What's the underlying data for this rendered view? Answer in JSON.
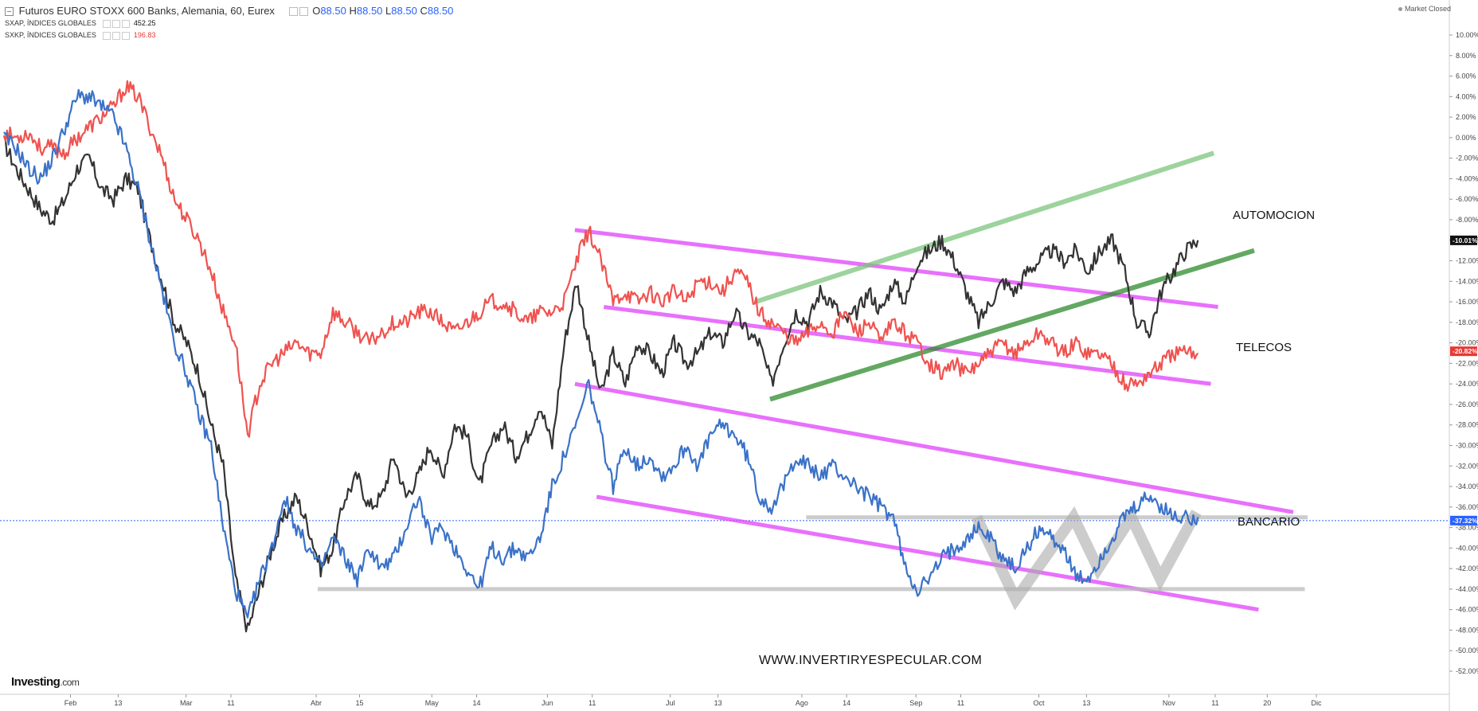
{
  "header": {
    "title": "Futuros EURO STOXX 600 Banks, Alemania, 60, Eurex",
    "open_key": "O",
    "open": "88.50",
    "high_key": "H",
    "high": "88.50",
    "low_key": "L",
    "low": "88.50",
    "close_key": "C",
    "close": "88.50"
  },
  "legend": [
    {
      "name": "SXAP, ÍNDICES GLOBALES",
      "value": "452.25",
      "color": "#333333"
    },
    {
      "name": "SXKP, ÍNDICES GLOBALES",
      "value": "196.83",
      "color": "#e53935"
    }
  ],
  "status": "Market Closed",
  "branding": {
    "logo": "Investing",
    "logo_suffix": ".com"
  },
  "annotations": {
    "automocion": "AUTOMOCION",
    "telecos": "TELECOS",
    "bancario": "BANCARIO",
    "website": "WWW.INVERTIRYESPECULAR.COM"
  },
  "chart_data": {
    "type": "line",
    "x_ticks": [
      "Feb",
      "13",
      "Mar",
      "11",
      "Abr",
      "15",
      "May",
      "14",
      "Jun",
      "11",
      "Jul",
      "13",
      "Ago",
      "14",
      "Sep",
      "11",
      "Oct",
      "13",
      "Nov",
      "11",
      "20",
      "Dic"
    ],
    "y_ticks": [
      "10.00%",
      "8.00%",
      "6.00%",
      "4.00%",
      "2.00%",
      "0.00%",
      "-2.00%",
      "-4.00%",
      "-6.00%",
      "-8.00%",
      "-10.00%",
      "-12.00%",
      "-14.00%",
      "-16.00%",
      "-18.00%",
      "-20.00%",
      "-22.00%",
      "-24.00%",
      "-26.00%",
      "-28.00%",
      "-30.00%",
      "-32.00%",
      "-34.00%",
      "-36.00%",
      "-38.00%",
      "-40.00%",
      "-42.00%",
      "-44.00%",
      "-46.00%",
      "-48.00%",
      "-50.00%",
      "-52.00%"
    ],
    "ylim": [
      -52,
      10
    ],
    "series": [
      {
        "name": "SXAP, ÍNDICES GLOBALES",
        "color": "#333333",
        "values": [
          -0.5,
          -3,
          -5,
          -7,
          -8,
          -6,
          -3,
          -2,
          -5,
          -6,
          -4,
          -5,
          -10,
          -14,
          -18,
          -20,
          -23,
          -28,
          -32,
          -43,
          -48,
          -44,
          -40,
          -37,
          -35,
          -38,
          -42,
          -40,
          -35,
          -33,
          -36,
          -35,
          -31,
          -35,
          -33,
          -30,
          -33,
          -28,
          -29,
          -34,
          -30,
          -28,
          -31,
          -29,
          -26,
          -30,
          -20,
          -14,
          -20,
          -25,
          -21,
          -24,
          -20,
          -21,
          -23,
          -20,
          -22,
          -21,
          -19,
          -20,
          -17,
          -19,
          -20,
          -24,
          -20,
          -17,
          -18,
          -15,
          -16,
          -18,
          -17,
          -15,
          -17,
          -14,
          -16,
          -12,
          -11,
          -10,
          -12,
          -15,
          -18,
          -16,
          -14,
          -15,
          -13,
          -12,
          -11,
          -12,
          -11,
          -13,
          -11,
          -10,
          -13,
          -18,
          -19,
          -15,
          -13,
          -11,
          -10
        ]
      },
      {
        "name": "SXKP, ÍNDICES GLOBALES",
        "color": "#ef5350",
        "values": [
          0.5,
          0,
          0.5,
          -1,
          -1,
          -1.5,
          0,
          1,
          2,
          3,
          5,
          4,
          1,
          -2,
          -6,
          -8,
          -10,
          -13,
          -17,
          -20,
          -29,
          -24,
          -22,
          -21,
          -20,
          -21,
          -21,
          -17,
          -18,
          -19,
          -20,
          -19,
          -18,
          -18,
          -17,
          -17,
          -18,
          -19,
          -18,
          -17,
          -16,
          -16,
          -17,
          -18,
          -17,
          -17,
          -16,
          -12,
          -9,
          -12,
          -16,
          -15,
          -16,
          -15,
          -16,
          -15,
          -16,
          -14,
          -14,
          -15,
          -13,
          -14,
          -17,
          -18,
          -19,
          -20,
          -19,
          -18,
          -19,
          -17,
          -19,
          -18,
          -20,
          -18,
          -19,
          -20,
          -22,
          -23,
          -22,
          -23,
          -22,
          -21,
          -20,
          -21,
          -20,
          -19,
          -20,
          -21,
          -20,
          -21,
          -21,
          -22,
          -24,
          -24,
          -23,
          -22,
          -21,
          -21,
          -21
        ]
      },
      {
        "name": "Futuros EURO STOXX 600 Banks",
        "color": "#3a72c8",
        "values": [
          0,
          -1,
          -3,
          -4,
          -2,
          1,
          4,
          4,
          3,
          2,
          -1,
          -5,
          -10,
          -15,
          -20,
          -23,
          -27,
          -30,
          -38,
          -44,
          -47,
          -43,
          -40,
          -35,
          -38,
          -40,
          -42,
          -39,
          -41,
          -43,
          -40,
          -42,
          -41,
          -38,
          -35,
          -39,
          -38,
          -40,
          -42,
          -44,
          -40,
          -41,
          -40,
          -41,
          -39,
          -34,
          -31,
          -28,
          -24,
          -29,
          -34,
          -30,
          -32,
          -31,
          -33,
          -32,
          -30,
          -32,
          -29,
          -28,
          -29,
          -31,
          -35,
          -36,
          -34,
          -31,
          -32,
          -33,
          -32,
          -33,
          -34,
          -35,
          -36,
          -37,
          -42,
          -44,
          -43,
          -41,
          -40,
          -39,
          -38,
          -39,
          -41,
          -42,
          -40,
          -38,
          -39,
          -40,
          -43,
          -43,
          -41,
          -39,
          -37,
          -36,
          -35,
          -36,
          -37,
          -37,
          -37
        ]
      }
    ],
    "current_labels": [
      {
        "text": "-10.01%",
        "value": -10.01,
        "bg": "#111111"
      },
      {
        "text": "-20.82%",
        "value": -20.82,
        "bg": "#e53935"
      },
      {
        "text": "-37.32%",
        "value": -37.32,
        "bg": "#2962ff"
      }
    ],
    "reference_line": -37.32,
    "trendlines": [
      {
        "name": "telecos-channel-top",
        "color": "#e040fb",
        "x": [
          0.395,
          0.84
        ],
        "y": [
          -9,
          -16.5
        ]
      },
      {
        "name": "telecos-channel-bottom",
        "color": "#e040fb",
        "x": [
          0.415,
          0.835
        ],
        "y": [
          -16.5,
          -24
        ]
      },
      {
        "name": "bancario-channel-top",
        "color": "#e040fb",
        "x": [
          0.395,
          0.892
        ],
        "y": [
          -24,
          -36.5
        ]
      },
      {
        "name": "bancario-channel-bottom",
        "color": "#e040fb",
        "x": [
          0.41,
          0.868
        ],
        "y": [
          -35,
          -46
        ]
      },
      {
        "name": "automocion-trend-lower",
        "color": "#2e8b2e",
        "x": [
          0.53,
          0.865
        ],
        "y": [
          -25.5,
          -11
        ]
      },
      {
        "name": "automocion-trend-upper",
        "color": "#7cc47c",
        "x": [
          0.52,
          0.837
        ],
        "y": [
          -16,
          -1.5
        ]
      },
      {
        "name": "support-bancario",
        "color": "#bbbbbb",
        "x": [
          0.555,
          0.902
        ],
        "y": [
          -37,
          -37
        ]
      },
      {
        "name": "support-low",
        "color": "#bbbbbb",
        "x": [
          0.217,
          0.9
        ],
        "y": [
          -44,
          -44
        ]
      }
    ],
    "pattern_w": {
      "color": "#aaaaaa",
      "x": [
        0.673,
        0.7,
        0.74,
        0.757,
        0.78,
        0.8,
        0.825
      ],
      "y": [
        -37,
        -45,
        -37,
        -42,
        -37,
        -43,
        -36.5
      ]
    }
  }
}
